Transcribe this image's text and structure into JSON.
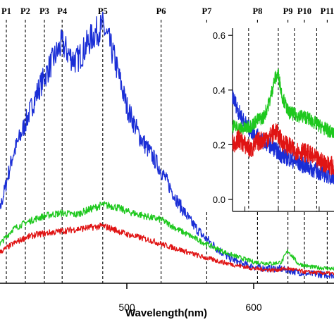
{
  "chart_data": {
    "type": "line",
    "xlabel": "Wavelength(nm)",
    "xlim": [
      390,
      672
    ],
    "x_ticks": [
      500,
      600
    ],
    "peaks": [
      {
        "label": "P1",
        "x": 405
      },
      {
        "label": "P2",
        "x": 420
      },
      {
        "label": "P3",
        "x": 435
      },
      {
        "label": "P4",
        "x": 449
      },
      {
        "label": "P5",
        "x": 481
      },
      {
        "label": "P6",
        "x": 527
      },
      {
        "label": "P7",
        "x": 563
      },
      {
        "label": "P8",
        "x": 603
      },
      {
        "label": "P9",
        "x": 627
      },
      {
        "label": "P10",
        "x": 640
      },
      {
        "label": "P11",
        "x": 658
      }
    ],
    "series": [
      {
        "color": "#1a2ed6",
        "x": [
          390,
          400,
          410,
          420,
          430,
          440,
          445,
          449,
          455,
          460,
          465,
          470,
          475,
          481,
          485,
          490,
          500,
          510,
          520,
          527,
          540,
          550,
          560,
          570,
          580,
          590,
          600,
          610,
          620,
          627,
          640,
          660,
          672
        ],
        "values": [
          0.3,
          0.45,
          0.78,
          0.98,
          1.18,
          1.34,
          1.41,
          1.47,
          1.39,
          1.36,
          1.41,
          1.48,
          1.53,
          1.57,
          1.5,
          1.38,
          1.08,
          0.9,
          0.78,
          0.69,
          0.5,
          0.38,
          0.29,
          0.22,
          0.16,
          0.12,
          0.1,
          0.09,
          0.09,
          0.08,
          0.06,
          0.05,
          0.04
        ]
      },
      {
        "color": "#1ec81e",
        "x": [
          390,
          400,
          410,
          420,
          430,
          440,
          449,
          460,
          470,
          481,
          490,
          500,
          510,
          520,
          527,
          540,
          560,
          580,
          600,
          615,
          622,
          627,
          635,
          645,
          660,
          672
        ],
        "values": [
          0.2,
          0.24,
          0.33,
          0.37,
          0.4,
          0.42,
          0.43,
          0.42,
          0.45,
          0.48,
          0.47,
          0.44,
          0.42,
          0.4,
          0.39,
          0.33,
          0.25,
          0.18,
          0.13,
          0.12,
          0.13,
          0.2,
          0.12,
          0.1,
          0.09,
          0.08
        ]
      },
      {
        "color": "#e01414",
        "x": [
          390,
          400,
          410,
          420,
          430,
          440,
          449,
          460,
          470,
          481,
          490,
          500,
          510,
          520,
          527,
          540,
          560,
          580,
          600,
          615,
          627,
          640,
          660,
          672
        ],
        "values": [
          0.15,
          0.19,
          0.24,
          0.28,
          0.3,
          0.31,
          0.32,
          0.33,
          0.34,
          0.35,
          0.33,
          0.3,
          0.28,
          0.26,
          0.24,
          0.21,
          0.16,
          0.12,
          0.09,
          0.08,
          0.09,
          0.07,
          0.06,
          0.05
        ]
      }
    ],
    "inset": {
      "type": "line",
      "ylim": [
        -0.08,
        0.62
      ],
      "y_ticks": [
        "0.0",
        "0.2",
        "0.4",
        "0.6"
      ],
      "xlim": [
        590,
        672
      ],
      "series": [
        {
          "color": "#1a2ed6",
          "x": [
            590,
            595,
            600,
            605,
            610,
            615,
            620,
            625,
            630,
            640,
            650,
            660,
            672
          ],
          "values": [
            0.38,
            0.32,
            0.28,
            0.25,
            0.23,
            0.21,
            0.2,
            0.18,
            0.16,
            0.14,
            0.12,
            0.1,
            0.08
          ]
        },
        {
          "color": "#1ec81e",
          "x": [
            590,
            595,
            600,
            605,
            610,
            615,
            620,
            624,
            627,
            630,
            635,
            640,
            650,
            660,
            672
          ],
          "values": [
            0.27,
            0.26,
            0.26,
            0.27,
            0.29,
            0.3,
            0.36,
            0.44,
            0.46,
            0.38,
            0.32,
            0.31,
            0.3,
            0.27,
            0.24
          ]
        },
        {
          "color": "#e01414",
          "x": [
            590,
            595,
            600,
            605,
            610,
            615,
            620,
            625,
            630,
            640,
            650,
            660,
            672
          ],
          "values": [
            0.2,
            0.22,
            0.2,
            0.18,
            0.21,
            0.22,
            0.23,
            0.25,
            0.21,
            0.18,
            0.17,
            0.14,
            0.12
          ]
        }
      ]
    }
  }
}
